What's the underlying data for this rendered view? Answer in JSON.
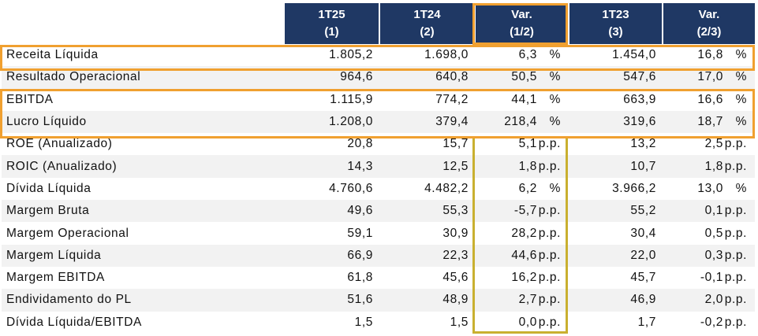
{
  "header": {
    "columns": [
      {
        "line1": "",
        "line2": ""
      },
      {
        "line1": "1T25",
        "line2": "(1)"
      },
      {
        "line1": "1T24",
        "line2": "(2)"
      },
      {
        "line1": "Var.",
        "line2": "(1/2)"
      },
      {
        "line1": "1T23",
        "line2": "(3)"
      },
      {
        "line1": "Var.",
        "line2": "(2/3)"
      }
    ]
  },
  "rows": [
    {
      "label": "Receita Líquida",
      "t25": "1.805,2",
      "t24": "1.698,0",
      "var12": "6,3",
      "var12_unit": "%",
      "t23": "1.454,0",
      "var23": "16,8",
      "var23_unit": "%"
    },
    {
      "label": "Resultado Operacional",
      "t25": "964,6",
      "t24": "640,8",
      "var12": "50,5",
      "var12_unit": "%",
      "t23": "547,6",
      "var23": "17,0",
      "var23_unit": "%"
    },
    {
      "label": "EBITDA",
      "t25": "1.115,9",
      "t24": "774,2",
      "var12": "44,1",
      "var12_unit": "%",
      "t23": "663,9",
      "var23": "16,6",
      "var23_unit": "%"
    },
    {
      "label": "Lucro Líquido",
      "t25": "1.208,0",
      "t24": "379,4",
      "var12": "218,4",
      "var12_unit": "%",
      "t23": "319,6",
      "var23": "18,7",
      "var23_unit": "%"
    },
    {
      "label": "ROE (Anualizado)",
      "t25": "20,8",
      "t24": "15,7",
      "var12": "5,1",
      "var12_unit": "p.p.",
      "t23": "13,2",
      "var23": "2,5",
      "var23_unit": "p.p."
    },
    {
      "label": "ROIC (Anualizado)",
      "t25": "14,3",
      "t24": "12,5",
      "var12": "1,8",
      "var12_unit": "p.p.",
      "t23": "10,7",
      "var23": "1,8",
      "var23_unit": "p.p."
    },
    {
      "label": "Dívida Líquida",
      "t25": "4.760,6",
      "t24": "4.482,2",
      "var12": "6,2",
      "var12_unit": "%",
      "t23": "3.966,2",
      "var23": "13,0",
      "var23_unit": "%"
    },
    {
      "label": "Margem Bruta",
      "t25": "49,6",
      "t24": "55,3",
      "var12": "-5,7",
      "var12_unit": "p.p.",
      "t23": "55,2",
      "var23": "0,1",
      "var23_unit": "p.p."
    },
    {
      "label": "Margem Operacional",
      "t25": "59,1",
      "t24": "30,9",
      "var12": "28,2",
      "var12_unit": "p.p.",
      "t23": "30,4",
      "var23": "0,5",
      "var23_unit": "p.p."
    },
    {
      "label": "Margem Líquida",
      "t25": "66,9",
      "t24": "22,3",
      "var12": "44,6",
      "var12_unit": "p.p.",
      "t23": "22,0",
      "var23": "0,3",
      "var23_unit": "p.p."
    },
    {
      "label": "Margem EBITDA",
      "t25": "61,8",
      "t24": "45,6",
      "var12": "16,2",
      "var12_unit": "p.p.",
      "t23": "45,7",
      "var23": "-0,1",
      "var23_unit": "p.p."
    },
    {
      "label": "Endividamento do PL",
      "t25": "51,6",
      "t24": "48,9",
      "var12": "2,7",
      "var12_unit": "p.p.",
      "t23": "46,9",
      "var23": "2,0",
      "var23_unit": "p.p."
    },
    {
      "label": "Dívida Líquida/EBITDA",
      "t25": "1,5",
      "t24": "1,5",
      "var12": "0,0",
      "var12_unit": "p.p.",
      "t23": "1,7",
      "var23": "-0,2",
      "var23_unit": "p.p."
    }
  ],
  "colors": {
    "header_bg": "#1f3864",
    "highlight_orange": "#f0a030",
    "highlight_olive": "#c9b030",
    "stripe": "#f2f2f2"
  }
}
